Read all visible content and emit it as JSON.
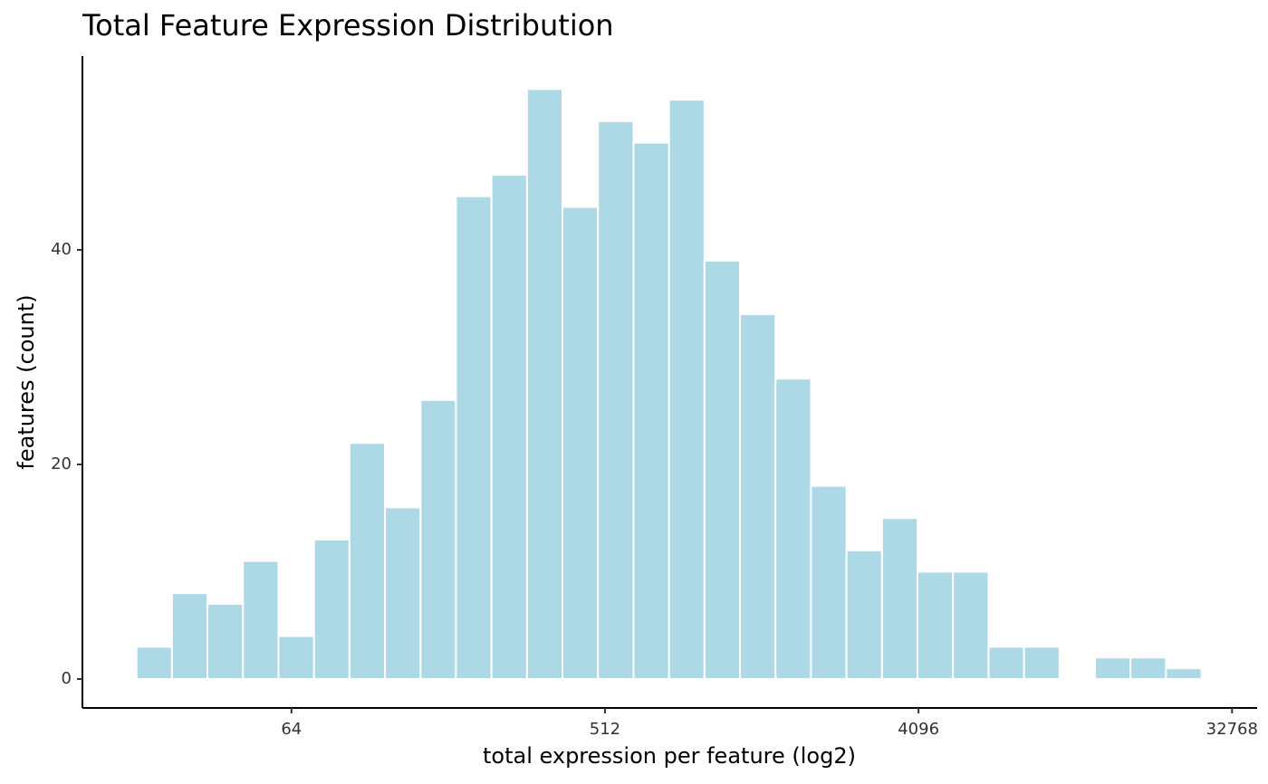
{
  "chart_data": {
    "type": "histogram",
    "title": "Total Feature Expression Distribution",
    "x_label": "total expression per feature (log2)",
    "y_label": "features (count)",
    "bins": [
      4.517,
      4.857,
      5.196,
      5.536,
      5.876,
      6.216,
      6.555,
      6.895,
      7.235,
      7.574,
      7.914,
      8.254,
      8.593,
      8.933,
      9.273,
      9.613,
      9.952,
      10.292,
      10.632,
      10.971,
      11.311,
      11.651,
      11.99,
      12.33,
      12.67,
      13.01,
      13.349,
      13.689,
      14.029,
      14.368,
      14.708
    ],
    "values": [
      3,
      8,
      7,
      11,
      4,
      13,
      22,
      16,
      26,
      45,
      47,
      55,
      44,
      52,
      50,
      54,
      39,
      34,
      28,
      18,
      12,
      15,
      10,
      10,
      3,
      3,
      0,
      2,
      2,
      1
    ],
    "color": "#add8e6",
    "xlim": [
      4.0,
      15.24
    ],
    "xticks": [
      {
        "value": 6,
        "label": "64"
      },
      {
        "value": 9,
        "label": "512"
      },
      {
        "value": 12,
        "label": "4096"
      },
      {
        "value": 15,
        "label": "32768"
      }
    ],
    "ylim": [
      -2.7,
      58.06
    ],
    "yticks": [
      0,
      20,
      40
    ],
    "grid": false
  }
}
